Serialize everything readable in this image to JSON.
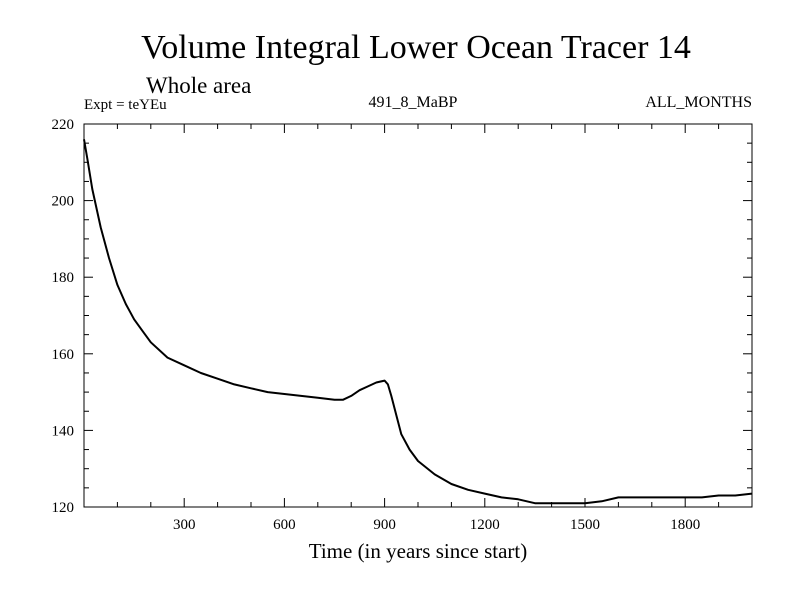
{
  "chart_data": {
    "type": "line",
    "title": "Volume Integral Lower Ocean Tracer 14",
    "subtitle": "Whole area",
    "left_label": "Expt = teYEu",
    "center_label": "491_8_MaBP",
    "right_label": "ALL_MONTHS",
    "xlabel": "Time (in years since start)",
    "ylabel": "",
    "xlim": [
      0,
      2000
    ],
    "ylim": [
      120,
      220
    ],
    "x_ticks": [
      300,
      600,
      900,
      1200,
      1500,
      1800
    ],
    "x_tick_labels": [
      "300",
      "600",
      "900",
      "1200",
      "1500",
      "1800"
    ],
    "y_ticks": [
      120,
      140,
      160,
      180,
      200,
      220
    ],
    "y_tick_labels": [
      "120",
      "140",
      "160",
      "180",
      "200",
      "220"
    ],
    "grid": false,
    "series": [
      {
        "name": "Lower Ocean Tracer 14",
        "color": "#000000",
        "x": [
          0,
          10,
          25,
          50,
          75,
          100,
          125,
          150,
          175,
          200,
          250,
          300,
          350,
          400,
          450,
          500,
          550,
          600,
          650,
          700,
          750,
          775,
          800,
          825,
          850,
          875,
          900,
          910,
          920,
          935,
          950,
          975,
          1000,
          1050,
          1100,
          1150,
          1200,
          1250,
          1300,
          1350,
          1400,
          1450,
          1500,
          1550,
          1600,
          1650,
          1700,
          1750,
          1800,
          1850,
          1900,
          1950,
          2000
        ],
        "y": [
          216,
          211,
          203,
          193,
          185,
          178,
          173,
          169,
          166,
          163,
          159,
          157,
          155,
          153.5,
          152,
          151,
          150,
          149.5,
          149,
          148.5,
          148,
          148,
          149,
          150.5,
          151.5,
          152.5,
          153,
          152,
          149,
          144,
          139,
          135,
          132,
          128.5,
          126,
          124.5,
          123.5,
          122.5,
          122,
          121,
          121,
          121,
          121,
          121.5,
          122.5,
          122.5,
          122.5,
          122.5,
          122.5,
          122.5,
          123,
          123,
          123.5
        ]
      }
    ]
  }
}
